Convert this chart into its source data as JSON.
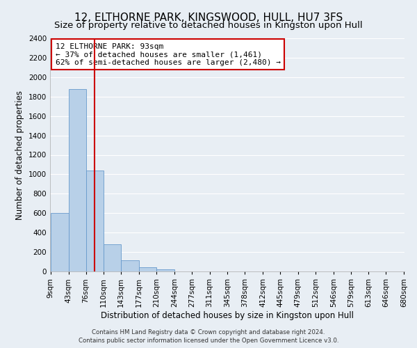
{
  "title": "12, ELTHORNE PARK, KINGSWOOD, HULL, HU7 3FS",
  "subtitle": "Size of property relative to detached houses in Kingston upon Hull",
  "xlabel": "Distribution of detached houses by size in Kingston upon Hull",
  "ylabel": "Number of detached properties",
  "bar_edges": [
    9,
    43,
    76,
    110,
    143,
    177,
    210,
    244,
    277,
    311,
    345,
    378,
    412,
    445,
    479,
    512,
    546,
    579,
    613,
    646,
    680
  ],
  "bar_heights": [
    600,
    1880,
    1040,
    280,
    115,
    45,
    20,
    0,
    0,
    0,
    0,
    0,
    0,
    0,
    0,
    0,
    0,
    0,
    0,
    0
  ],
  "bar_color": "#b8d0e8",
  "bar_edge_color": "#6699cc",
  "vline_x": 93,
  "vline_color": "#cc0000",
  "ylim": [
    0,
    2400
  ],
  "yticks": [
    0,
    200,
    400,
    600,
    800,
    1000,
    1200,
    1400,
    1600,
    1800,
    2000,
    2200,
    2400
  ],
  "xtick_labels": [
    "9sqm",
    "43sqm",
    "76sqm",
    "110sqm",
    "143sqm",
    "177sqm",
    "210sqm",
    "244sqm",
    "277sqm",
    "311sqm",
    "345sqm",
    "378sqm",
    "412sqm",
    "445sqm",
    "479sqm",
    "512sqm",
    "546sqm",
    "579sqm",
    "613sqm",
    "646sqm",
    "680sqm"
  ],
  "annotation_title": "12 ELTHORNE PARK: 93sqm",
  "annotation_line1": "← 37% of detached houses are smaller (1,461)",
  "annotation_line2": "62% of semi-detached houses are larger (2,480) →",
  "annotation_box_color": "#ffffff",
  "annotation_box_edge_color": "#cc0000",
  "footer1": "Contains HM Land Registry data © Crown copyright and database right 2024.",
  "footer2": "Contains public sector information licensed under the Open Government Licence v3.0.",
  "background_color": "#e8eef4",
  "grid_color": "#ffffff",
  "title_fontsize": 11,
  "subtitle_fontsize": 9.5,
  "axis_fontsize": 8.5,
  "tick_fontsize": 7.5,
  "annotation_fontsize": 8
}
